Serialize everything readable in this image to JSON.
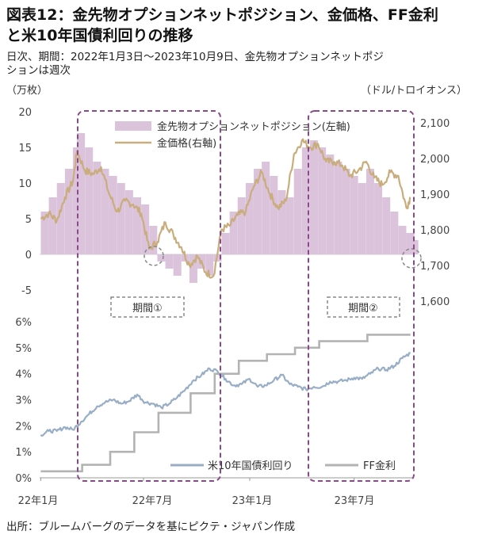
{
  "header": {
    "title_line1": "図表12：金先物オプションネットポジション、金価格、FF金利",
    "title_line2": "と米10年国債利回りの推移",
    "subtitle_line1": "日次、期間：2022年1月3日～2023年10月9日、金先物オプションネットポジ",
    "subtitle_line2": "ションは週次"
  },
  "source": "出所：ブルームバーグのデータを基にピクテ・ジャパン作成",
  "colors": {
    "net_position": "#dcc3dc",
    "gold_price": "#c9ad7c",
    "us10y": "#98aec6",
    "ff_rate": "#b3b3b3",
    "period_box": "#8a4a8a",
    "period_label_box": "#888888",
    "circle_marker": "#888888"
  },
  "periods": [
    {
      "label": "期間①",
      "start": "2022-03-07",
      "end": "2022-10-31"
    },
    {
      "label": "期間②",
      "start": "2023-03-13",
      "end": "2023-10-09"
    }
  ],
  "chart_data": [
    {
      "type": "bar+line",
      "ylabel_left": "（万枚）",
      "ylabel_right": "（ドル/トロイオンス）",
      "ylim_left": [
        -5,
        20
      ],
      "ylim_right": [
        1600,
        2100
      ],
      "yticks_left": [
        "20",
        "15",
        "10",
        "5",
        "0",
        "-5"
      ],
      "yticks_right": [
        "2,100",
        "2,000",
        "1,900",
        "1,800",
        "1,700",
        "1,600"
      ],
      "legend_position": "top-center",
      "series": [
        {
          "name": "金先物オプションネットポジション(左軸)",
          "kind": "bar",
          "axis": "left",
          "x": [
            "2022-01-03",
            "2022-01-17",
            "2022-01-31",
            "2022-02-14",
            "2022-02-28",
            "2022-03-07",
            "2022-03-21",
            "2022-04-04",
            "2022-04-18",
            "2022-05-02",
            "2022-05-16",
            "2022-05-30",
            "2022-06-13",
            "2022-06-27",
            "2022-07-11",
            "2022-07-25",
            "2022-08-08",
            "2022-08-22",
            "2022-09-05",
            "2022-09-19",
            "2022-10-03",
            "2022-10-17",
            "2022-10-31",
            "2022-11-14",
            "2022-11-28",
            "2022-12-12",
            "2022-12-26",
            "2023-01-09",
            "2023-01-23",
            "2023-02-06",
            "2023-02-20",
            "2023-03-06",
            "2023-03-20",
            "2023-04-03",
            "2023-04-17",
            "2023-05-01",
            "2023-05-15",
            "2023-05-29",
            "2023-06-12",
            "2023-06-26",
            "2023-07-10",
            "2023-07-24",
            "2023-08-07",
            "2023-08-21",
            "2023-09-04",
            "2023-09-18",
            "2023-10-02",
            "2023-10-09"
          ],
          "values": [
            6,
            8,
            10,
            12,
            15,
            17,
            15,
            13,
            12,
            11,
            10,
            9,
            8,
            7,
            4,
            -1,
            -2,
            -3,
            -1,
            -4,
            -2,
            -3,
            -1,
            3,
            6,
            8,
            10,
            12,
            13,
            11,
            9,
            8,
            12,
            15,
            16,
            15,
            14,
            13,
            12,
            11,
            10,
            12,
            10,
            8,
            6,
            4,
            3,
            2
          ]
        },
        {
          "name": "金価格(右軸)",
          "kind": "line",
          "axis": "right",
          "x": [
            "2022-01-03",
            "2022-01-17",
            "2022-01-31",
            "2022-02-14",
            "2022-02-28",
            "2022-03-07",
            "2022-03-21",
            "2022-04-04",
            "2022-04-18",
            "2022-05-02",
            "2022-05-16",
            "2022-05-30",
            "2022-06-13",
            "2022-06-27",
            "2022-07-11",
            "2022-07-25",
            "2022-08-08",
            "2022-08-22",
            "2022-09-05",
            "2022-09-19",
            "2022-10-03",
            "2022-10-17",
            "2022-10-31",
            "2022-11-14",
            "2022-11-28",
            "2022-12-12",
            "2022-12-26",
            "2023-01-09",
            "2023-01-23",
            "2023-02-06",
            "2023-02-20",
            "2023-03-06",
            "2023-03-20",
            "2023-04-03",
            "2023-04-17",
            "2023-05-01",
            "2023-05-15",
            "2023-05-29",
            "2023-06-12",
            "2023-06-26",
            "2023-07-10",
            "2023-07-24",
            "2023-08-07",
            "2023-08-21",
            "2023-09-04",
            "2023-09-18",
            "2023-10-02",
            "2023-10-09"
          ],
          "values": [
            1800,
            1815,
            1795,
            1860,
            1905,
            1990,
            1935,
            1925,
            1945,
            1870,
            1820,
            1850,
            1840,
            1815,
            1715,
            1735,
            1790,
            1755,
            1720,
            1670,
            1695,
            1650,
            1640,
            1770,
            1780,
            1810,
            1820,
            1890,
            1930,
            1870,
            1830,
            1850,
            1980,
            2020,
            2000,
            2010,
            1960,
            1960,
            1950,
            1920,
            1935,
            1960,
            1915,
            1895,
            1930,
            1920,
            1830,
            1860
          ]
        }
      ]
    },
    {
      "type": "line",
      "ylim": [
        0,
        6
      ],
      "yticks": [
        "6%",
        "5%",
        "4%",
        "3%",
        "2%",
        "1%",
        "0%"
      ],
      "xticks": [
        "22年1月",
        "22年7月",
        "23年1月",
        "23年7月"
      ],
      "legend_position": "bottom-right",
      "series": [
        {
          "name": "米10年国債利回り",
          "x": [
            "2022-01-03",
            "2022-01-17",
            "2022-01-31",
            "2022-02-14",
            "2022-02-28",
            "2022-03-14",
            "2022-03-28",
            "2022-04-11",
            "2022-04-25",
            "2022-05-09",
            "2022-05-23",
            "2022-06-06",
            "2022-06-20",
            "2022-07-04",
            "2022-07-18",
            "2022-08-01",
            "2022-08-15",
            "2022-08-29",
            "2022-09-12",
            "2022-09-26",
            "2022-10-10",
            "2022-10-24",
            "2022-11-07",
            "2022-11-21",
            "2022-12-05",
            "2022-12-19",
            "2023-01-02",
            "2023-01-16",
            "2023-01-30",
            "2023-02-13",
            "2023-02-27",
            "2023-03-13",
            "2023-03-27",
            "2023-04-10",
            "2023-04-24",
            "2023-05-08",
            "2023-05-22",
            "2023-06-05",
            "2023-06-19",
            "2023-07-03",
            "2023-07-17",
            "2023-07-31",
            "2023-08-14",
            "2023-08-28",
            "2023-09-11",
            "2023-09-25",
            "2023-10-09"
          ],
          "values": [
            1.65,
            1.8,
            1.8,
            1.95,
            1.85,
            2.15,
            2.45,
            2.75,
            2.9,
            3.0,
            2.85,
            2.95,
            3.2,
            2.9,
            2.85,
            2.7,
            2.85,
            3.1,
            3.4,
            3.75,
            3.95,
            4.2,
            4.1,
            3.8,
            3.55,
            3.6,
            3.8,
            3.5,
            3.55,
            3.75,
            3.95,
            3.6,
            3.5,
            3.4,
            3.5,
            3.5,
            3.7,
            3.7,
            3.75,
            3.85,
            3.8,
            4.0,
            4.2,
            4.15,
            4.3,
            4.6,
            4.8
          ]
        },
        {
          "name": "FF金利",
          "x": [
            "2022-01-03",
            "2022-03-16",
            "2022-05-04",
            "2022-06-15",
            "2022-07-27",
            "2022-09-21",
            "2022-11-02",
            "2022-12-14",
            "2023-02-01",
            "2023-03-22",
            "2023-05-03",
            "2023-07-26",
            "2023-10-09"
          ],
          "values": [
            0.25,
            0.5,
            1.0,
            1.75,
            2.5,
            3.25,
            4.0,
            4.5,
            4.75,
            5.0,
            5.25,
            5.5,
            5.5
          ]
        }
      ]
    }
  ]
}
